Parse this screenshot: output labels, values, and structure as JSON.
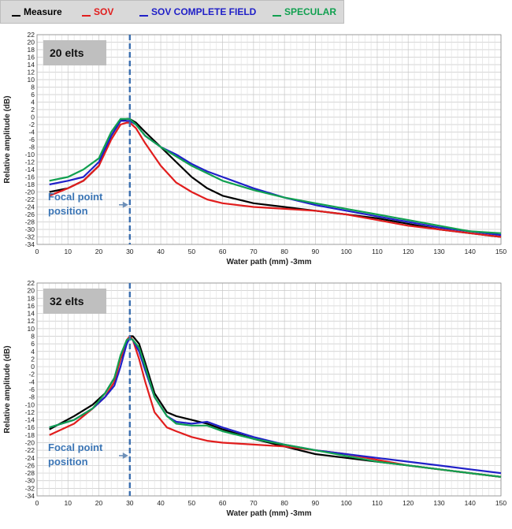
{
  "legend": [
    {
      "name": "Measure",
      "color": "#000000"
    },
    {
      "name": "SOV",
      "color": "#e11d1d"
    },
    {
      "name": "SOV COMPLETE FIELD",
      "color": "#2020c8"
    },
    {
      "name": "SPECULAR",
      "color": "#11a050"
    }
  ],
  "chart_data": [
    {
      "type": "line",
      "panel_label": "20 elts",
      "annotation": [
        "Focal point",
        "position"
      ],
      "focal_x": 30,
      "xlabel": "Water path (mm) -3mm",
      "ylabel": "Relative amplitude (dB)",
      "xlim": [
        0,
        150
      ],
      "ylim": [
        -34,
        22
      ],
      "x_ticks": [
        0,
        10,
        20,
        30,
        40,
        50,
        60,
        70,
        80,
        90,
        100,
        110,
        120,
        130,
        140,
        150
      ],
      "y_ticks": [
        22,
        20,
        18,
        16,
        14,
        12,
        10,
        8,
        6,
        4,
        2,
        0,
        -2,
        -4,
        -6,
        -8,
        -10,
        -12,
        -14,
        -16,
        -18,
        -20,
        -22,
        -24,
        -26,
        -28,
        -30,
        -32,
        -34
      ],
      "grid": true,
      "series": [
        {
          "name": "Measure",
          "color": "#000000",
          "x": [
            4,
            10,
            15,
            20,
            24,
            27,
            29,
            30,
            32,
            35,
            40,
            45,
            50,
            55,
            60,
            70,
            80,
            90,
            100,
            110,
            120,
            130,
            140,
            150
          ],
          "y": [
            -20,
            -19,
            -17,
            -13,
            -5,
            -1,
            -0.5,
            -0.5,
            -1.5,
            -4,
            -8,
            -12,
            -16,
            -19,
            -21,
            -23,
            -24,
            -25,
            -26,
            -27,
            -28.5,
            -30,
            -31,
            -32
          ]
        },
        {
          "name": "SOV",
          "color": "#e11d1d",
          "x": [
            4,
            10,
            15,
            20,
            24,
            27,
            29,
            30,
            32,
            35,
            40,
            45,
            50,
            55,
            60,
            70,
            80,
            90,
            100,
            110,
            120,
            130,
            140,
            150
          ],
          "y": [
            -21,
            -19,
            -17,
            -13,
            -6,
            -2,
            -1.5,
            -1.5,
            -3,
            -7,
            -13,
            -17.5,
            -20,
            -22,
            -23,
            -24,
            -24.5,
            -25,
            -26,
            -27.5,
            -29,
            -30,
            -31,
            -32
          ]
        },
        {
          "name": "SOV COMPLETE FIELD",
          "color": "#2020c8",
          "x": [
            4,
            10,
            15,
            20,
            24,
            27,
            29,
            30,
            32,
            35,
            40,
            45,
            50,
            55,
            60,
            70,
            80,
            90,
            100,
            110,
            120,
            130,
            140,
            150
          ],
          "y": [
            -18,
            -17,
            -16,
            -12,
            -5,
            -1,
            -1,
            -1,
            -2,
            -5,
            -8,
            -10,
            -12.5,
            -14.5,
            -16,
            -19,
            -21.5,
            -23.5,
            -25,
            -26.5,
            -28,
            -29.5,
            -30.5,
            -31.5
          ]
        },
        {
          "name": "SPECULAR",
          "color": "#11a050",
          "x": [
            4,
            10,
            15,
            20,
            24,
            27,
            29,
            30,
            32,
            35,
            40,
            45,
            50,
            55,
            60,
            70,
            80,
            90,
            100,
            110,
            120,
            130,
            140,
            150
          ],
          "y": [
            -17,
            -16,
            -14,
            -11,
            -4,
            -0.5,
            -0.5,
            -0.5,
            -2,
            -5,
            -8,
            -10.5,
            -13,
            -15,
            -17,
            -19.5,
            -21.5,
            -23,
            -24.5,
            -26,
            -27.5,
            -29,
            -30.5,
            -31
          ]
        }
      ]
    },
    {
      "type": "line",
      "panel_label": "32 elts",
      "annotation": [
        "Focal point",
        "position"
      ],
      "focal_x": 30,
      "xlabel": "Water path (mm) -3mm",
      "ylabel": "Relative amplitude (dB)",
      "xlim": [
        0,
        150
      ],
      "ylim": [
        -34,
        22
      ],
      "x_ticks": [
        0,
        10,
        20,
        30,
        40,
        50,
        60,
        70,
        80,
        90,
        100,
        110,
        120,
        130,
        140,
        150
      ],
      "y_ticks": [
        22,
        20,
        18,
        16,
        14,
        12,
        10,
        8,
        6,
        4,
        2,
        0,
        -2,
        -4,
        -6,
        -8,
        -10,
        -12,
        -14,
        -16,
        -18,
        -20,
        -22,
        -24,
        -26,
        -28,
        -30,
        -32,
        -34
      ],
      "grid": true,
      "series": [
        {
          "name": "Measure",
          "color": "#000000",
          "x": [
            4,
            12,
            18,
            22,
            25,
            27,
            29,
            30,
            31,
            33,
            35,
            38,
            42,
            45,
            50,
            55,
            60,
            70,
            80,
            90,
            100,
            110,
            120,
            130,
            140,
            150
          ],
          "y": [
            -16.5,
            -13,
            -10,
            -7,
            -3,
            2,
            6,
            8,
            8,
            6,
            1,
            -7,
            -12,
            -13,
            -14,
            -15,
            -16.5,
            -19,
            -21,
            -23,
            -24,
            -25,
            -26,
            -27,
            -28,
            -29
          ]
        },
        {
          "name": "SOV",
          "color": "#e11d1d",
          "x": [
            4,
            12,
            18,
            22,
            25,
            27,
            29,
            30,
            31,
            33,
            35,
            38,
            42,
            45,
            50,
            55,
            60,
            70,
            80,
            90,
            100,
            110,
            120,
            130,
            140,
            150
          ],
          "y": [
            -18,
            -15,
            -11,
            -8,
            -4,
            2,
            7,
            8,
            7,
            2,
            -4,
            -12,
            -16,
            -17,
            -18.5,
            -19.5,
            -20,
            -20.5,
            -21,
            -22,
            -23,
            -24.5,
            -26,
            -27,
            -28,
            -29
          ]
        },
        {
          "name": "SOV COMPLETE FIELD",
          "color": "#2020c8",
          "x": [
            4,
            12,
            18,
            22,
            25,
            27,
            29,
            30,
            31,
            33,
            35,
            38,
            42,
            45,
            50,
            55,
            60,
            70,
            80,
            90,
            100,
            110,
            120,
            130,
            140,
            150
          ],
          "y": [
            -16,
            -14,
            -11,
            -8,
            -5,
            0,
            6,
            7.5,
            7,
            4,
            -1,
            -8,
            -13,
            -14.5,
            -15,
            -14.5,
            -16,
            -18.5,
            -20.5,
            -22,
            -23,
            -24,
            -25,
            -26,
            -27,
            -28
          ]
        },
        {
          "name": "SPECULAR",
          "color": "#11a050",
          "x": [
            4,
            12,
            18,
            22,
            25,
            27,
            29,
            30,
            31,
            33,
            35,
            38,
            42,
            45,
            50,
            55,
            60,
            70,
            80,
            90,
            100,
            110,
            120,
            130,
            140,
            150
          ],
          "y": [
            -16,
            -14,
            -11,
            -7,
            -3,
            3,
            7,
            7.5,
            7,
            5,
            0,
            -8,
            -13,
            -15,
            -15.5,
            -15.5,
            -17,
            -19,
            -20.5,
            -22,
            -23.5,
            -25,
            -26,
            -27,
            -28,
            -29
          ]
        }
      ]
    }
  ]
}
